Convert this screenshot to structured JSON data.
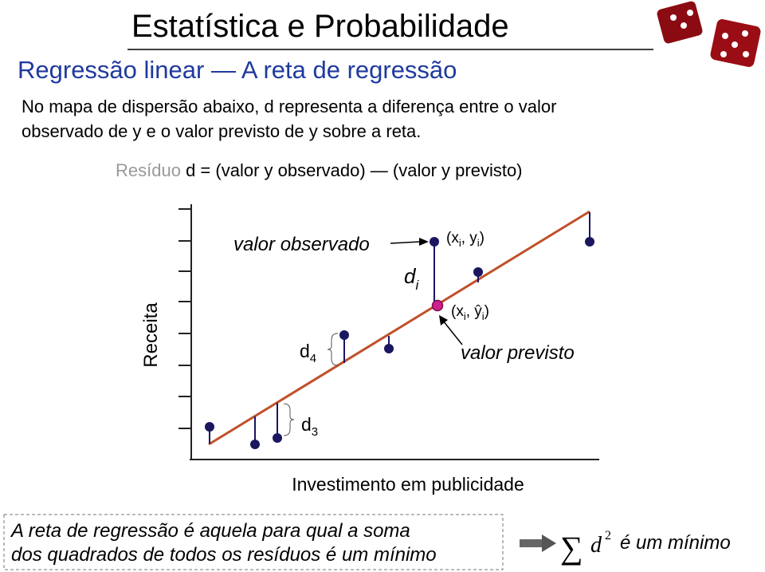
{
  "header": {
    "title": "Estatística e Probabilidade",
    "subtitle": "Regressão linear — A reta de regressão"
  },
  "intro": {
    "lines": [
      "No mapa de dispersão abaixo, d representa a diferença entre o valor",
      "observado de y e o valor previsto de y sobre a reta."
    ]
  },
  "formula": {
    "term": "Resíduo",
    "expression": "d = (valor y observado) — (valor y previsto)"
  },
  "diagram": {
    "y_axis": "Receita",
    "x_axis": "Investimento em publicidade",
    "observed_label": "valor observado",
    "predicted_label": "valor previsto",
    "di": {
      "base": "d",
      "sub": "i"
    },
    "observed_point": {
      "open": "(x",
      "sub1": "i",
      "mid": ", y",
      "sub2": "i",
      "close": ")"
    },
    "predicted_point": {
      "open": "(x",
      "sub1": "i",
      "mid": ", ŷ",
      "sub2": "i",
      "close": ")"
    },
    "d4": {
      "base": "d",
      "sub": "4"
    },
    "d3": {
      "base": "d",
      "sub": "3"
    }
  },
  "footer": {
    "lines": [
      "A reta de regressão é aquela para qual a soma",
      "dos quadrados de todos os resíduos é um mínimo"
    ],
    "sigma": "∑",
    "d": "d",
    "exponent": "2",
    "conclusion": "é um mínimo"
  }
}
